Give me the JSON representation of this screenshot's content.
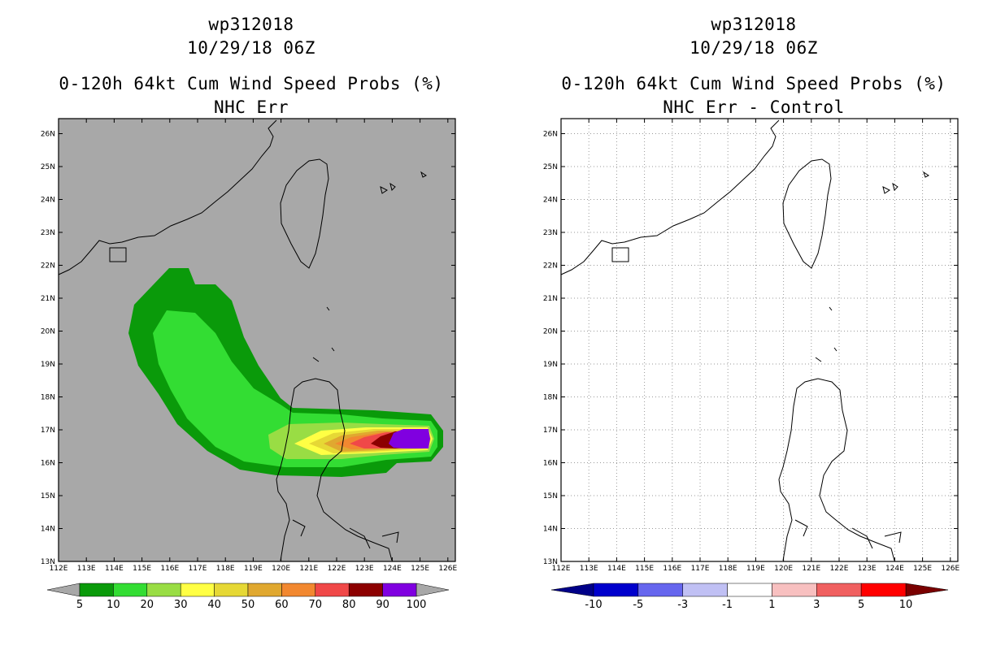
{
  "left": {
    "storm_id": "wp312018",
    "datetime": "10/29/18 06Z",
    "product": "0-120h 64kt Cum Wind Speed Probs (%)",
    "subtitle": "NHC Err",
    "colorbar": {
      "labels": [
        "5",
        "10",
        "20",
        "30",
        "40",
        "50",
        "60",
        "70",
        "80",
        "90",
        "100"
      ],
      "colors": [
        "#0a9a0a",
        "#33dd33",
        "#99dd44",
        "#ffff44",
        "#e6d835",
        "#e0a830",
        "#f28830",
        "#f04848",
        "#8c0000",
        "#8000e0"
      ],
      "under_color": "#a8a8a8",
      "over_color": "#a8a8a8"
    },
    "background": "#a8a8a8"
  },
  "right": {
    "storm_id": "wp312018",
    "datetime": "10/29/18 06Z",
    "product": "0-120h 64kt Cum Wind Speed Probs (%)",
    "subtitle": "NHC Err - Control",
    "colorbar": {
      "labels": [
        "-10",
        "-5",
        "-3",
        "-1",
        "1",
        "3",
        "5",
        "10"
      ],
      "colors": [
        "#0000cc",
        "#6666ee",
        "#c0c0f4",
        "#ffffff",
        "#f8c0c0",
        "#f06060",
        "#ff0000"
      ],
      "under_color": "#000088",
      "over_color": "#7a0000"
    },
    "background": "#ffffff"
  },
  "axes": {
    "lon_labels": [
      "112E",
      "113E",
      "114E",
      "115E",
      "116E",
      "117E",
      "118E",
      "119E",
      "120E",
      "121E",
      "122E",
      "123E",
      "124E",
      "125E",
      "126E"
    ],
    "lat_labels": [
      "13N",
      "14N",
      "15N",
      "16N",
      "17N",
      "18N",
      "19N",
      "20N",
      "21N",
      "22N",
      "23N",
      "24N",
      "25N",
      "26N"
    ]
  }
}
